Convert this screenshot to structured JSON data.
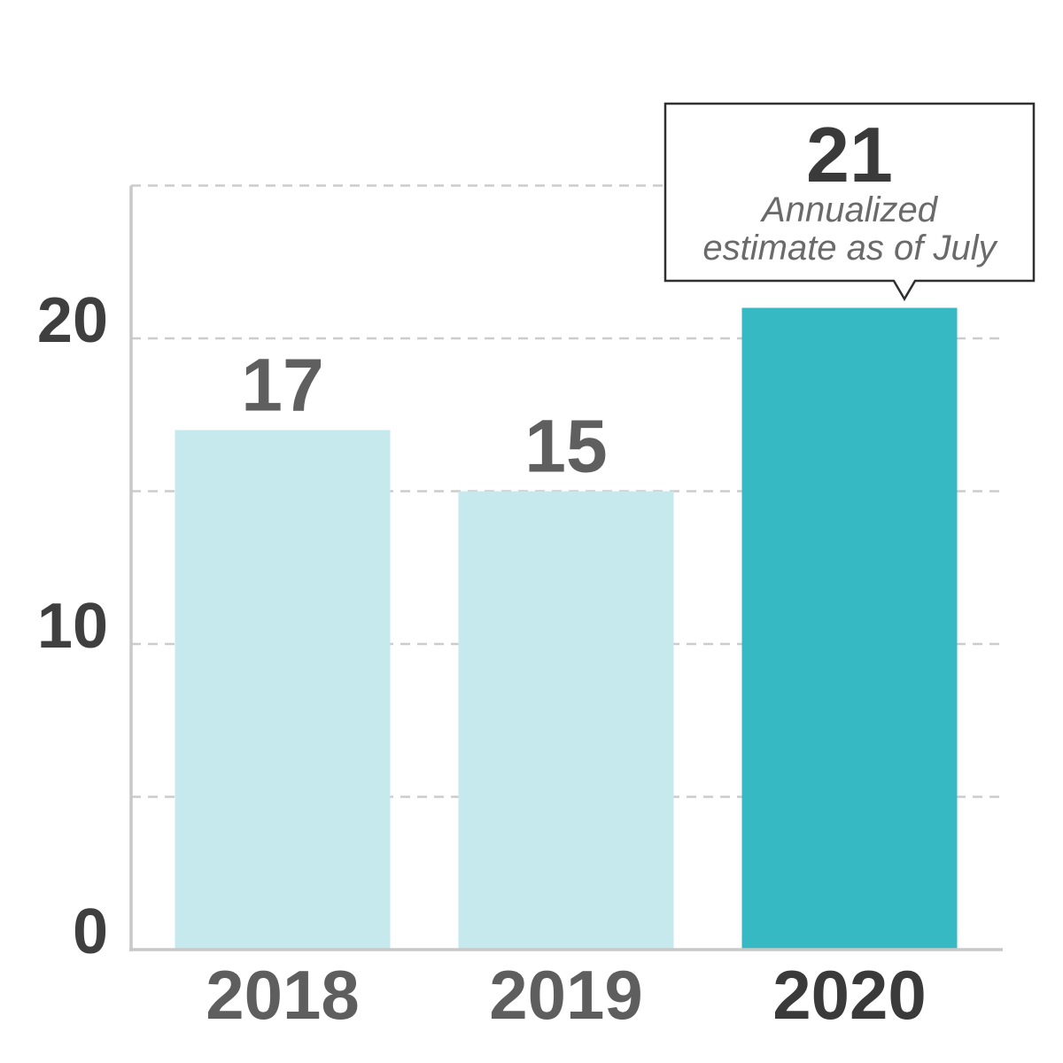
{
  "chart_data": {
    "type": "bar",
    "title": "",
    "xlabel": "",
    "ylabel": "",
    "categories": [
      "2018",
      "2019",
      "2020"
    ],
    "values": [
      17,
      15,
      21
    ],
    "value_labels": [
      "17",
      "15",
      ""
    ],
    "ylim": [
      0,
      25
    ],
    "yticks": [
      0,
      10,
      20
    ],
    "ytick_labels": [
      "0",
      "10",
      "20"
    ],
    "gridlines": [
      5,
      10,
      15,
      20,
      25
    ],
    "grid": true,
    "legend": "none",
    "colors": {
      "bar": "#c5e9ec",
      "bar_highlight": "#37b9c3",
      "grid": "#cccccc",
      "axis": "#c8c8c8",
      "tick_text": "#5e5e5e",
      "tick_text_highlight": "#3a3a3a"
    },
    "highlight_index": 2,
    "annotation": {
      "target": "2020",
      "value": "21",
      "note_lines": [
        "Annualized",
        "estimate as of July"
      ]
    }
  }
}
